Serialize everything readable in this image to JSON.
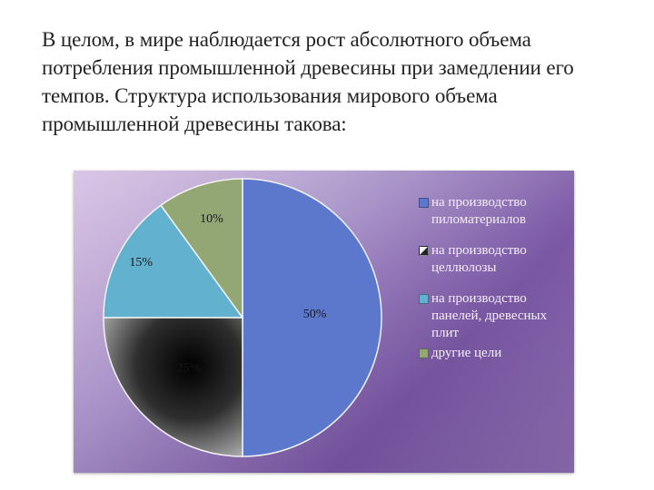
{
  "intro_text": "В целом, в мире наблюдается рост абсолютного объема потребления промышленной древесины при замедлении его темпов. Структура использования мирового объема промышленной древесины такова:",
  "chart_data": {
    "type": "pie",
    "title": "",
    "categories": [
      "на производство пиломатериалов",
      "на производство целлюлозы",
      "на производство панелей, древесных плит",
      "другие цели"
    ],
    "values": [
      50,
      25,
      15,
      10
    ],
    "data_labels": [
      "50%",
      "25%",
      "15%",
      "10%"
    ],
    "colors": [
      "#5b78cc",
      "#404040",
      "#62b1cf",
      "#93a775"
    ],
    "legend_position": "right"
  }
}
